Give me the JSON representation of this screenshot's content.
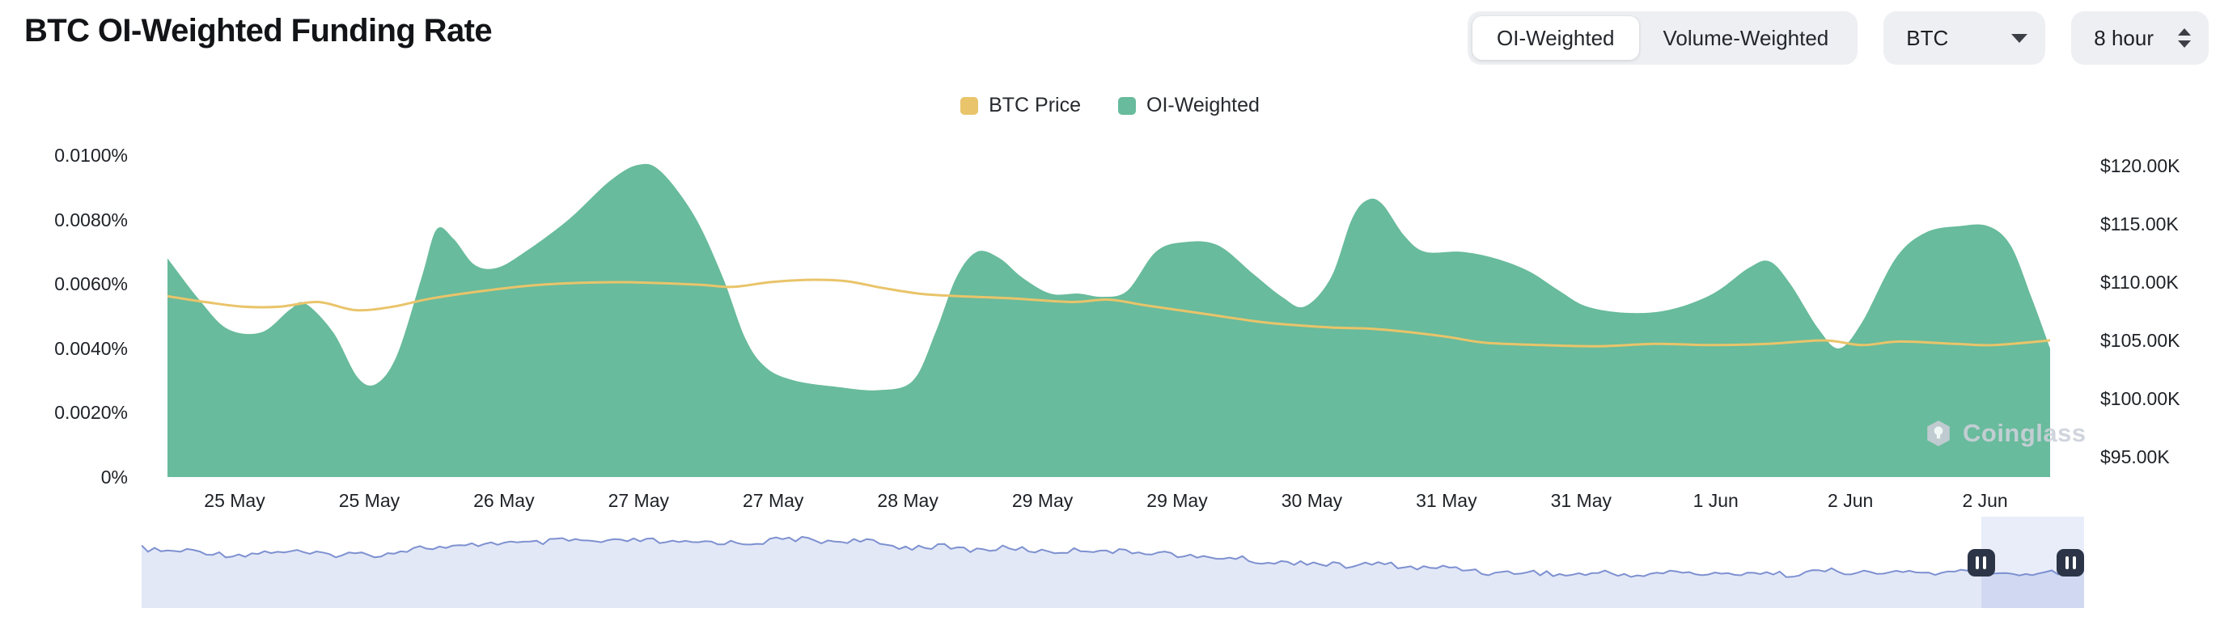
{
  "header": {
    "title": "BTC OI-Weighted Funding Rate"
  },
  "controls": {
    "weight_toggle": {
      "options": [
        "OI-Weighted",
        "Volume-Weighted"
      ],
      "selected": "OI-Weighted"
    },
    "symbol_select": {
      "value": "BTC",
      "icon": "chevron-down-icon"
    },
    "interval_select": {
      "value": "8 hour",
      "icon": "up-down-spinner-icon"
    }
  },
  "legend": {
    "items": [
      {
        "label": "BTC Price",
        "color": "#E9C46A"
      },
      {
        "label": "OI-Weighted",
        "color": "#68BB9C"
      }
    ]
  },
  "watermark": {
    "label": "Coinglass",
    "icon": "coinglass-logo-icon"
  },
  "navigator": {
    "selection": [
      0.947,
      1.0
    ],
    "line_color": "#7E91D0",
    "fill_color": "#E3E8F7",
    "handle_color": "#2C3547"
  },
  "chart_data": {
    "type": "area",
    "title": "BTC OI-Weighted Funding Rate",
    "grid": false,
    "legend_position": "top",
    "x_ticks": [
      "25 May",
      "25 May",
      "26 May",
      "27 May",
      "27 May",
      "28 May",
      "29 May",
      "29 May",
      "30 May",
      "31 May",
      "31 May",
      "1 Jun",
      "2 Jun",
      "2 Jun"
    ],
    "left_axis": {
      "ticks": [
        "0.0100%",
        "0.0080%",
        "0.0060%",
        "0.0040%",
        "0.0020%",
        "0%"
      ],
      "min_pct": 0,
      "max_pct": 0.01
    },
    "right_axis": {
      "ticks": [
        "$120.00K",
        "$115.00K",
        "$110.00K",
        "$105.00K",
        "$100.00K",
        "$95.00K"
      ],
      "min_usd_k": 95,
      "max_usd_k": 120
    },
    "series": [
      {
        "name": "OI-Weighted",
        "type": "area",
        "axis": "left",
        "unit": "%",
        "color": "#68BB9C",
        "points": [
          [
            0,
            0.0068
          ],
          [
            0.017,
            0.0055
          ],
          [
            0.032,
            0.0046
          ],
          [
            0.05,
            0.0045
          ],
          [
            0.065,
            0.0052
          ],
          [
            0.073,
            0.0054
          ],
          [
            0.088,
            0.0045
          ],
          [
            0.101,
            0.0031
          ],
          [
            0.111,
            0.0029
          ],
          [
            0.122,
            0.0038
          ],
          [
            0.135,
            0.0062
          ],
          [
            0.143,
            0.0077
          ],
          [
            0.152,
            0.0074
          ],
          [
            0.163,
            0.0066
          ],
          [
            0.175,
            0.0065
          ],
          [
            0.19,
            0.007
          ],
          [
            0.213,
            0.008
          ],
          [
            0.235,
            0.0092
          ],
          [
            0.25,
            0.0097
          ],
          [
            0.262,
            0.0095
          ],
          [
            0.28,
            0.0081
          ],
          [
            0.295,
            0.0062
          ],
          [
            0.307,
            0.0043
          ],
          [
            0.318,
            0.0034
          ],
          [
            0.333,
            0.003
          ],
          [
            0.356,
            0.0028
          ],
          [
            0.378,
            0.0027
          ],
          [
            0.396,
            0.003
          ],
          [
            0.408,
            0.0045
          ],
          [
            0.419,
            0.0062
          ],
          [
            0.43,
            0.007
          ],
          [
            0.442,
            0.0068
          ],
          [
            0.454,
            0.0062
          ],
          [
            0.469,
            0.0057
          ],
          [
            0.484,
            0.0057
          ],
          [
            0.497,
            0.0056
          ],
          [
            0.51,
            0.0058
          ],
          [
            0.525,
            0.007
          ],
          [
            0.54,
            0.0073
          ],
          [
            0.558,
            0.0072
          ],
          [
            0.577,
            0.0063
          ],
          [
            0.592,
            0.0056
          ],
          [
            0.604,
            0.0053
          ],
          [
            0.618,
            0.0062
          ],
          [
            0.629,
            0.008
          ],
          [
            0.637,
            0.0086
          ],
          [
            0.645,
            0.0085
          ],
          [
            0.657,
            0.0075
          ],
          [
            0.668,
            0.007
          ],
          [
            0.687,
            0.007
          ],
          [
            0.705,
            0.0068
          ],
          [
            0.723,
            0.0064
          ],
          [
            0.739,
            0.0058
          ],
          [
            0.754,
            0.0053
          ],
          [
            0.776,
            0.0051
          ],
          [
            0.798,
            0.0052
          ],
          [
            0.821,
            0.0057
          ],
          [
            0.84,
            0.0065
          ],
          [
            0.851,
            0.0067
          ],
          [
            0.862,
            0.006
          ],
          [
            0.877,
            0.0046
          ],
          [
            0.888,
            0.004
          ],
          [
            0.9,
            0.0048
          ],
          [
            0.918,
            0.0068
          ],
          [
            0.934,
            0.0076
          ],
          [
            0.952,
            0.0078
          ],
          [
            0.967,
            0.0078
          ],
          [
            0.979,
            0.0072
          ],
          [
            0.99,
            0.0056
          ],
          [
            1,
            0.004
          ]
        ]
      },
      {
        "name": "BTC Price",
        "type": "line",
        "axis": "right",
        "unit": "$K",
        "color": "#E9C46A",
        "points": [
          [
            0,
            108.8
          ],
          [
            0.02,
            108.3
          ],
          [
            0.04,
            107.9
          ],
          [
            0.06,
            107.9
          ],
          [
            0.08,
            108.3
          ],
          [
            0.1,
            107.6
          ],
          [
            0.12,
            107.9
          ],
          [
            0.14,
            108.6
          ],
          [
            0.17,
            109.3
          ],
          [
            0.2,
            109.8
          ],
          [
            0.24,
            110.0
          ],
          [
            0.28,
            109.8
          ],
          [
            0.3,
            109.6
          ],
          [
            0.32,
            110.0
          ],
          [
            0.34,
            110.2
          ],
          [
            0.36,
            110.1
          ],
          [
            0.38,
            109.5
          ],
          [
            0.4,
            109.0
          ],
          [
            0.42,
            108.8
          ],
          [
            0.45,
            108.6
          ],
          [
            0.48,
            108.3
          ],
          [
            0.5,
            108.5
          ],
          [
            0.52,
            108.0
          ],
          [
            0.55,
            107.3
          ],
          [
            0.58,
            106.6
          ],
          [
            0.6,
            106.3
          ],
          [
            0.62,
            106.1
          ],
          [
            0.64,
            106.0
          ],
          [
            0.66,
            105.7
          ],
          [
            0.68,
            105.3
          ],
          [
            0.7,
            104.8
          ],
          [
            0.73,
            104.6
          ],
          [
            0.76,
            104.5
          ],
          [
            0.79,
            104.7
          ],
          [
            0.82,
            104.6
          ],
          [
            0.85,
            104.7
          ],
          [
            0.88,
            105.0
          ],
          [
            0.9,
            104.6
          ],
          [
            0.92,
            104.9
          ],
          [
            0.95,
            104.7
          ],
          [
            0.97,
            104.6
          ],
          [
            1,
            105.0
          ]
        ]
      }
    ]
  }
}
